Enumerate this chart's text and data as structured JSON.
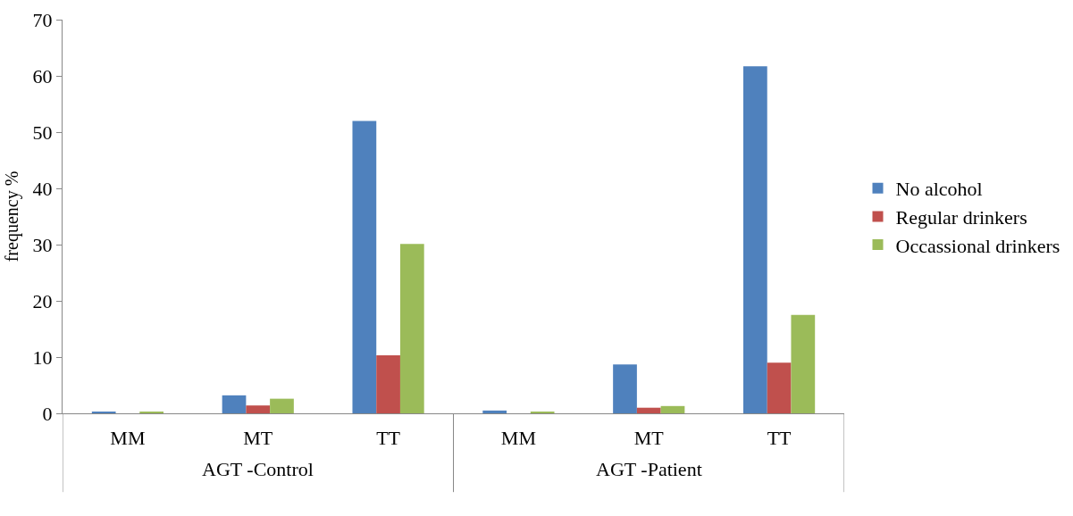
{
  "chart_data": {
    "type": "bar",
    "ylabel": "frequency %",
    "categories": [
      "MM",
      "MT",
      "TT",
      "MM",
      "MT",
      "TT"
    ],
    "annotations": [
      "AGT -Control",
      "AGT -Patient"
    ],
    "series": [
      {
        "name": "No alcohol",
        "color": "#4f81bd",
        "values": [
          0.3,
          3.2,
          52,
          0.5,
          8.7,
          61.7
        ]
      },
      {
        "name": "Regular drinkers",
        "color": "#c0504d",
        "values": [
          0,
          1.4,
          10.3,
          0,
          1.0,
          9
        ]
      },
      {
        "name": "Occassional drinkers",
        "color": "#9bbb59",
        "values": [
          0.3,
          2.6,
          30.1,
          0.3,
          1.3,
          17.5
        ]
      }
    ],
    "ylim": [
      0,
      70
    ],
    "yticks": [
      0,
      10,
      20,
      30,
      40,
      50,
      60,
      70
    ],
    "grid": false,
    "legend": "right"
  }
}
